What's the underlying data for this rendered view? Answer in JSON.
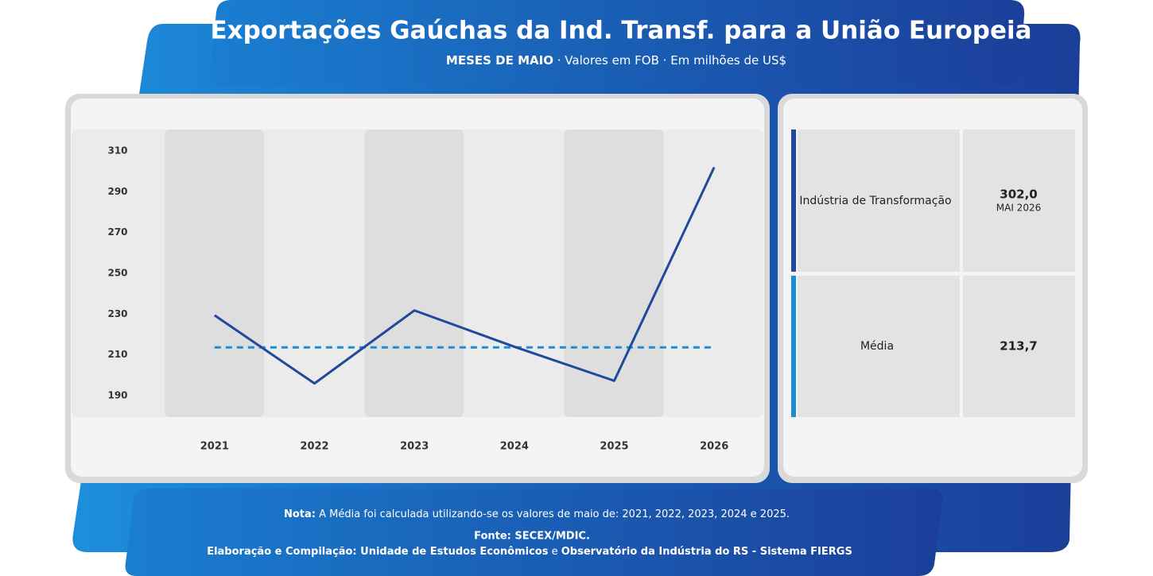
{
  "header": {
    "title": "Exportações Gaúchas da Ind. Transf. para a União Europeia",
    "subtitle_bold": "MESES DE MAIO",
    "subtitle": "· Valores em FOB · Em milhões de US$"
  },
  "chart_data": {
    "type": "line",
    "categories": [
      "2021",
      "2022",
      "2023",
      "2024",
      "2025",
      "2026"
    ],
    "series": [
      {
        "name": "Indústria de Transformação",
        "color": "#1f4a9c",
        "values": [
          229.4,
          196.0,
          231.8,
          214.0,
          197.3,
          302.0
        ]
      }
    ],
    "average": {
      "name": "Média",
      "value": 213.7,
      "color": "#1a8fd6"
    },
    "ylim": [
      179.5,
      320.5
    ],
    "yticks": [
      190,
      210,
      230,
      250,
      270,
      290,
      310
    ]
  },
  "summary": {
    "rows": [
      {
        "value": "302,0",
        "period": "MAI 2026"
      },
      {
        "value": "213,7"
      }
    ]
  },
  "footer": {
    "note_label": "Nota:",
    "note": "A Média foi calculada utilizando-se os valores de maio de: 2021, 2022, 2023, 2024 e 2025.",
    "source": "Fonte: SECEX/MDIC.",
    "credit_1": "Elaboração e Compilação: Unidade de Estudos Econômicos",
    "credit_2": "e",
    "credit_3": "Observatório da Indústria do RS - Sistema FIERGS"
  }
}
